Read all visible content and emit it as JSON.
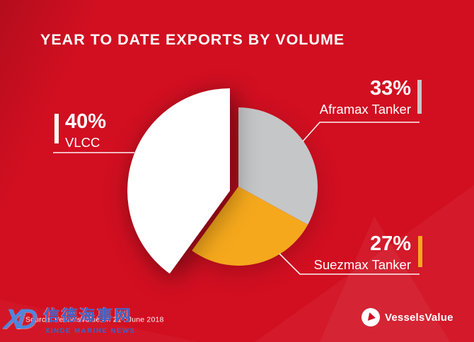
{
  "chart_data": {
    "type": "pie",
    "title": "YEAR TO DATE EXPORTS BY VOLUME",
    "start_angle_deg": 0,
    "rotation": "clockwise-from-top",
    "slices": [
      {
        "label": "Aframax Tanker",
        "value": 33,
        "pct_label": "33%",
        "color": "#C5C6C8",
        "exploded": false
      },
      {
        "label": "Suezmax Tanker",
        "value": 27,
        "pct_label": "27%",
        "color": "#F5A81C",
        "exploded": false
      },
      {
        "label": "VLCC",
        "value": 40,
        "pct_label": "40%",
        "color": "#FFFFFF",
        "exploded": true
      }
    ],
    "legend_position": "callouts",
    "background": "#D10F21"
  },
  "footer": {
    "source_prefix": "Source: VesselsValue on 21",
    "source_sup": "st",
    "source_suffix": " June 2018",
    "brand": "VesselsValue"
  },
  "watermark": {
    "logo_text": "XD",
    "chinese": "信德海事网",
    "english": "XINDE MARINE NEWS"
  },
  "colors": {
    "background": "#D10F21",
    "slice_gray": "#C5C6C8",
    "slice_orange": "#F5A81C",
    "slice_white": "#FFFFFF",
    "text": "#FFFFFF",
    "watermark_blue": "#3D63C8"
  }
}
